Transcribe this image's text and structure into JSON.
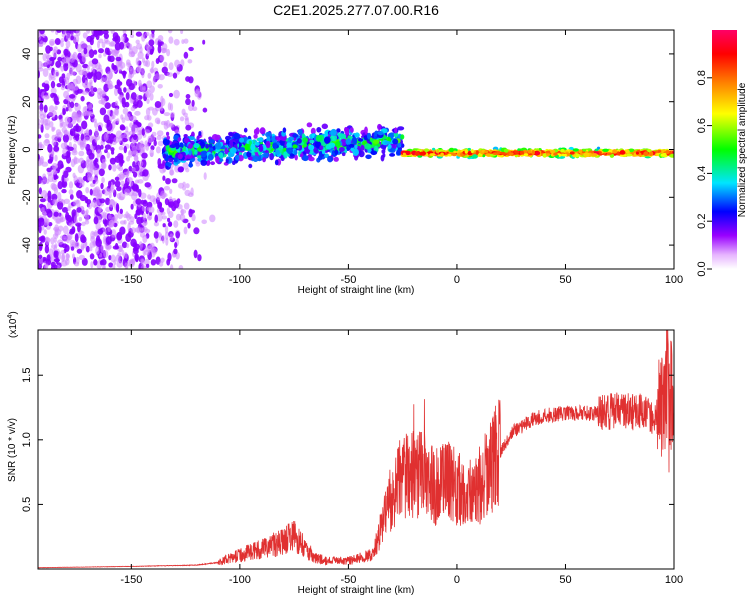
{
  "figure_title": "C2E1.2025.277.07.00.R16",
  "chart_data": [
    {
      "type": "heatmap",
      "panel": "top",
      "xlabel": "Height of straight line (km)",
      "ylabel": "Frequency (Hz)",
      "xlim": [
        -193,
        100
      ],
      "ylim": [
        -50,
        50
      ],
      "xticks": [
        -150,
        -100,
        -50,
        0,
        50,
        100
      ],
      "yticks": [
        -40,
        -20,
        0,
        20,
        40
      ],
      "grid": false,
      "colorbar": {
        "label": "Normalized spectral amplitude",
        "range": [
          0.0,
          1.0
        ],
        "ticks": [
          0.0,
          0.2,
          0.4,
          0.6,
          0.8
        ],
        "tick_labels": [
          "0.0",
          "0.2",
          "0.4",
          "0.6",
          "0.8"
        ],
        "colormap": [
          "#ffffff",
          "#9900ff",
          "#0000ff",
          "#00e5ff",
          "#00ff00",
          "#ffff00",
          "#ff8000",
          "#ff0000",
          "#ff0066"
        ]
      },
      "features": [
        {
          "name": "diffuse noise scatter",
          "x_range": [
            -193,
            -110
          ],
          "freq_range": [
            -50,
            50
          ],
          "level": 0.15
        },
        {
          "name": "broad echo band",
          "x_range": [
            -135,
            -25
          ],
          "freq_center_start": -1,
          "freq_center_end": 4,
          "level": 0.45
        },
        {
          "name": "narrow strong echo line",
          "x_range": [
            -25,
            100
          ],
          "freq_center": -1.5,
          "level": 0.95
        }
      ]
    },
    {
      "type": "line",
      "panel": "bottom",
      "xlabel": "Height of straight line (km)",
      "ylabel": "SNR (10 * v/v)",
      "yscale_label": "(x10",
      "yscale_exp": "4",
      "xlim": [
        -193,
        100
      ],
      "ylim": [
        0,
        18500
      ],
      "xticks": [
        -150,
        -100,
        -50,
        0,
        50,
        100
      ],
      "yticks": [
        5000,
        10000,
        15000
      ],
      "ytick_labels": [
        "0.5",
        "1.0",
        "1.5"
      ],
      "color": "#e03030",
      "grid": false,
      "x": [
        -193,
        -150,
        -120,
        -110,
        -100,
        -90,
        -80,
        -75,
        -70,
        -65,
        -60,
        -50,
        -45,
        -40,
        -38,
        -35,
        -30,
        -25,
        -20,
        -15,
        -10,
        -5,
        0,
        5,
        10,
        15,
        20,
        25,
        30,
        35,
        40,
        50,
        60,
        70,
        75,
        80,
        85,
        90,
        95,
        97,
        100
      ],
      "values": [
        100,
        200,
        300,
        500,
        1000,
        1500,
        2000,
        2500,
        1500,
        800,
        600,
        600,
        800,
        1000,
        1500,
        3000,
        5500,
        7000,
        7000,
        7000,
        6000,
        6500,
        6000,
        5500,
        6000,
        7500,
        9000,
        10500,
        11000,
        11500,
        11800,
        12000,
        12000,
        12000,
        12200,
        12000,
        12000,
        11500,
        12000,
        15000,
        11800
      ]
    }
  ]
}
